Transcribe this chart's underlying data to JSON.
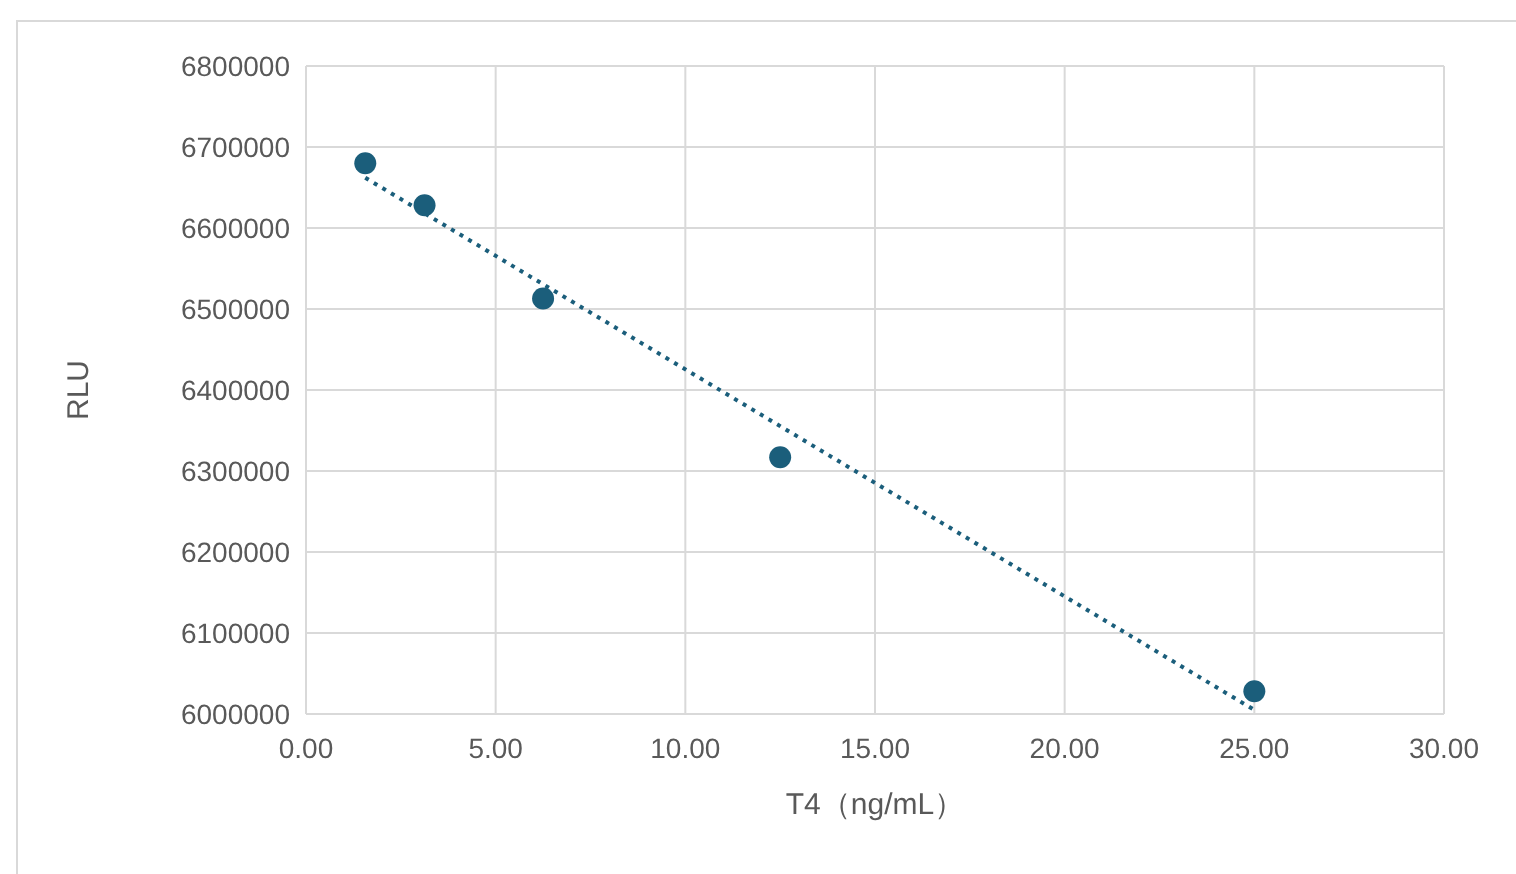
{
  "chart_data": {
    "type": "scatter",
    "xlabel": "T4（ng/mL）",
    "ylabel": "RLU",
    "xlim": [
      0,
      30
    ],
    "ylim": [
      6000000,
      6800000
    ],
    "xticks": [
      {
        "value": 0,
        "label": "0.00"
      },
      {
        "value": 5,
        "label": "5.00"
      },
      {
        "value": 10,
        "label": "10.00"
      },
      {
        "value": 15,
        "label": "15.00"
      },
      {
        "value": 20,
        "label": "20.00"
      },
      {
        "value": 25,
        "label": "25.00"
      },
      {
        "value": 30,
        "label": "30.00"
      }
    ],
    "yticks": [
      6000000,
      6100000,
      6200000,
      6300000,
      6400000,
      6500000,
      6600000,
      6700000,
      6800000
    ],
    "grid": true,
    "marker": "circle",
    "series": [
      {
        "type": "line",
        "color": "#1b5e7b",
        "line_style": "dotted",
        "marker": "none",
        "x": [
          1.5625,
          25
        ],
        "values": [
          6662000,
          6005000
        ]
      },
      {
        "color": "#1b5e7b",
        "x": [
          1.5625,
          3.125,
          6.25,
          12.5,
          25
        ],
        "values": [
          6680000,
          6628000,
          6513000,
          6317000,
          6028000
        ]
      }
    ]
  }
}
